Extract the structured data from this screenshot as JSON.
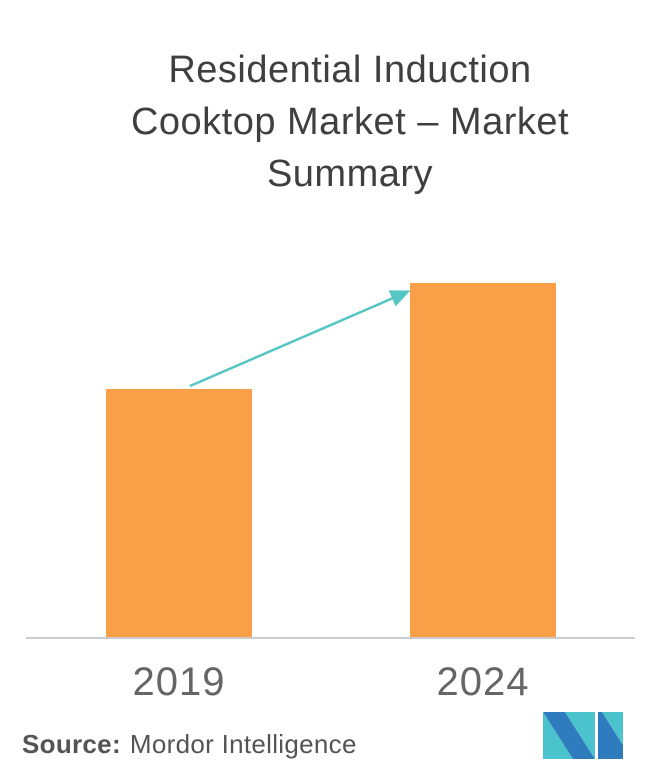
{
  "page": {
    "background_color": "#FFFFFF"
  },
  "title": {
    "text": "Residential Induction Cooktop Market – Market Summary",
    "lines": [
      "Residential Induction",
      "Cooktop Market – Market",
      "Summary"
    ],
    "color": "#3F3F41"
  },
  "chart_data": {
    "type": "bar",
    "categories": [
      "2019",
      "2024"
    ],
    "values_relative": [
      0.7,
      1.0
    ],
    "value_labels_shown": false,
    "y_axis_shown": false,
    "grid": false,
    "bar_color": "#F99F48",
    "axis_line_color": "#CBCBCB",
    "x_tick_color": "#656565",
    "annotation_arrow": {
      "from_category": "2019",
      "to_category": "2024",
      "direction": "up-right",
      "color": "#55C6C3"
    }
  },
  "footer": {
    "source_label": "Source:",
    "source_value": "Mordor Intelligence",
    "text_color": "#545456"
  },
  "branding": {
    "logo_name": "mordor-intelligence-logo",
    "logo_teal": "#4BC3CD",
    "logo_blue": "#2E7CBE"
  }
}
